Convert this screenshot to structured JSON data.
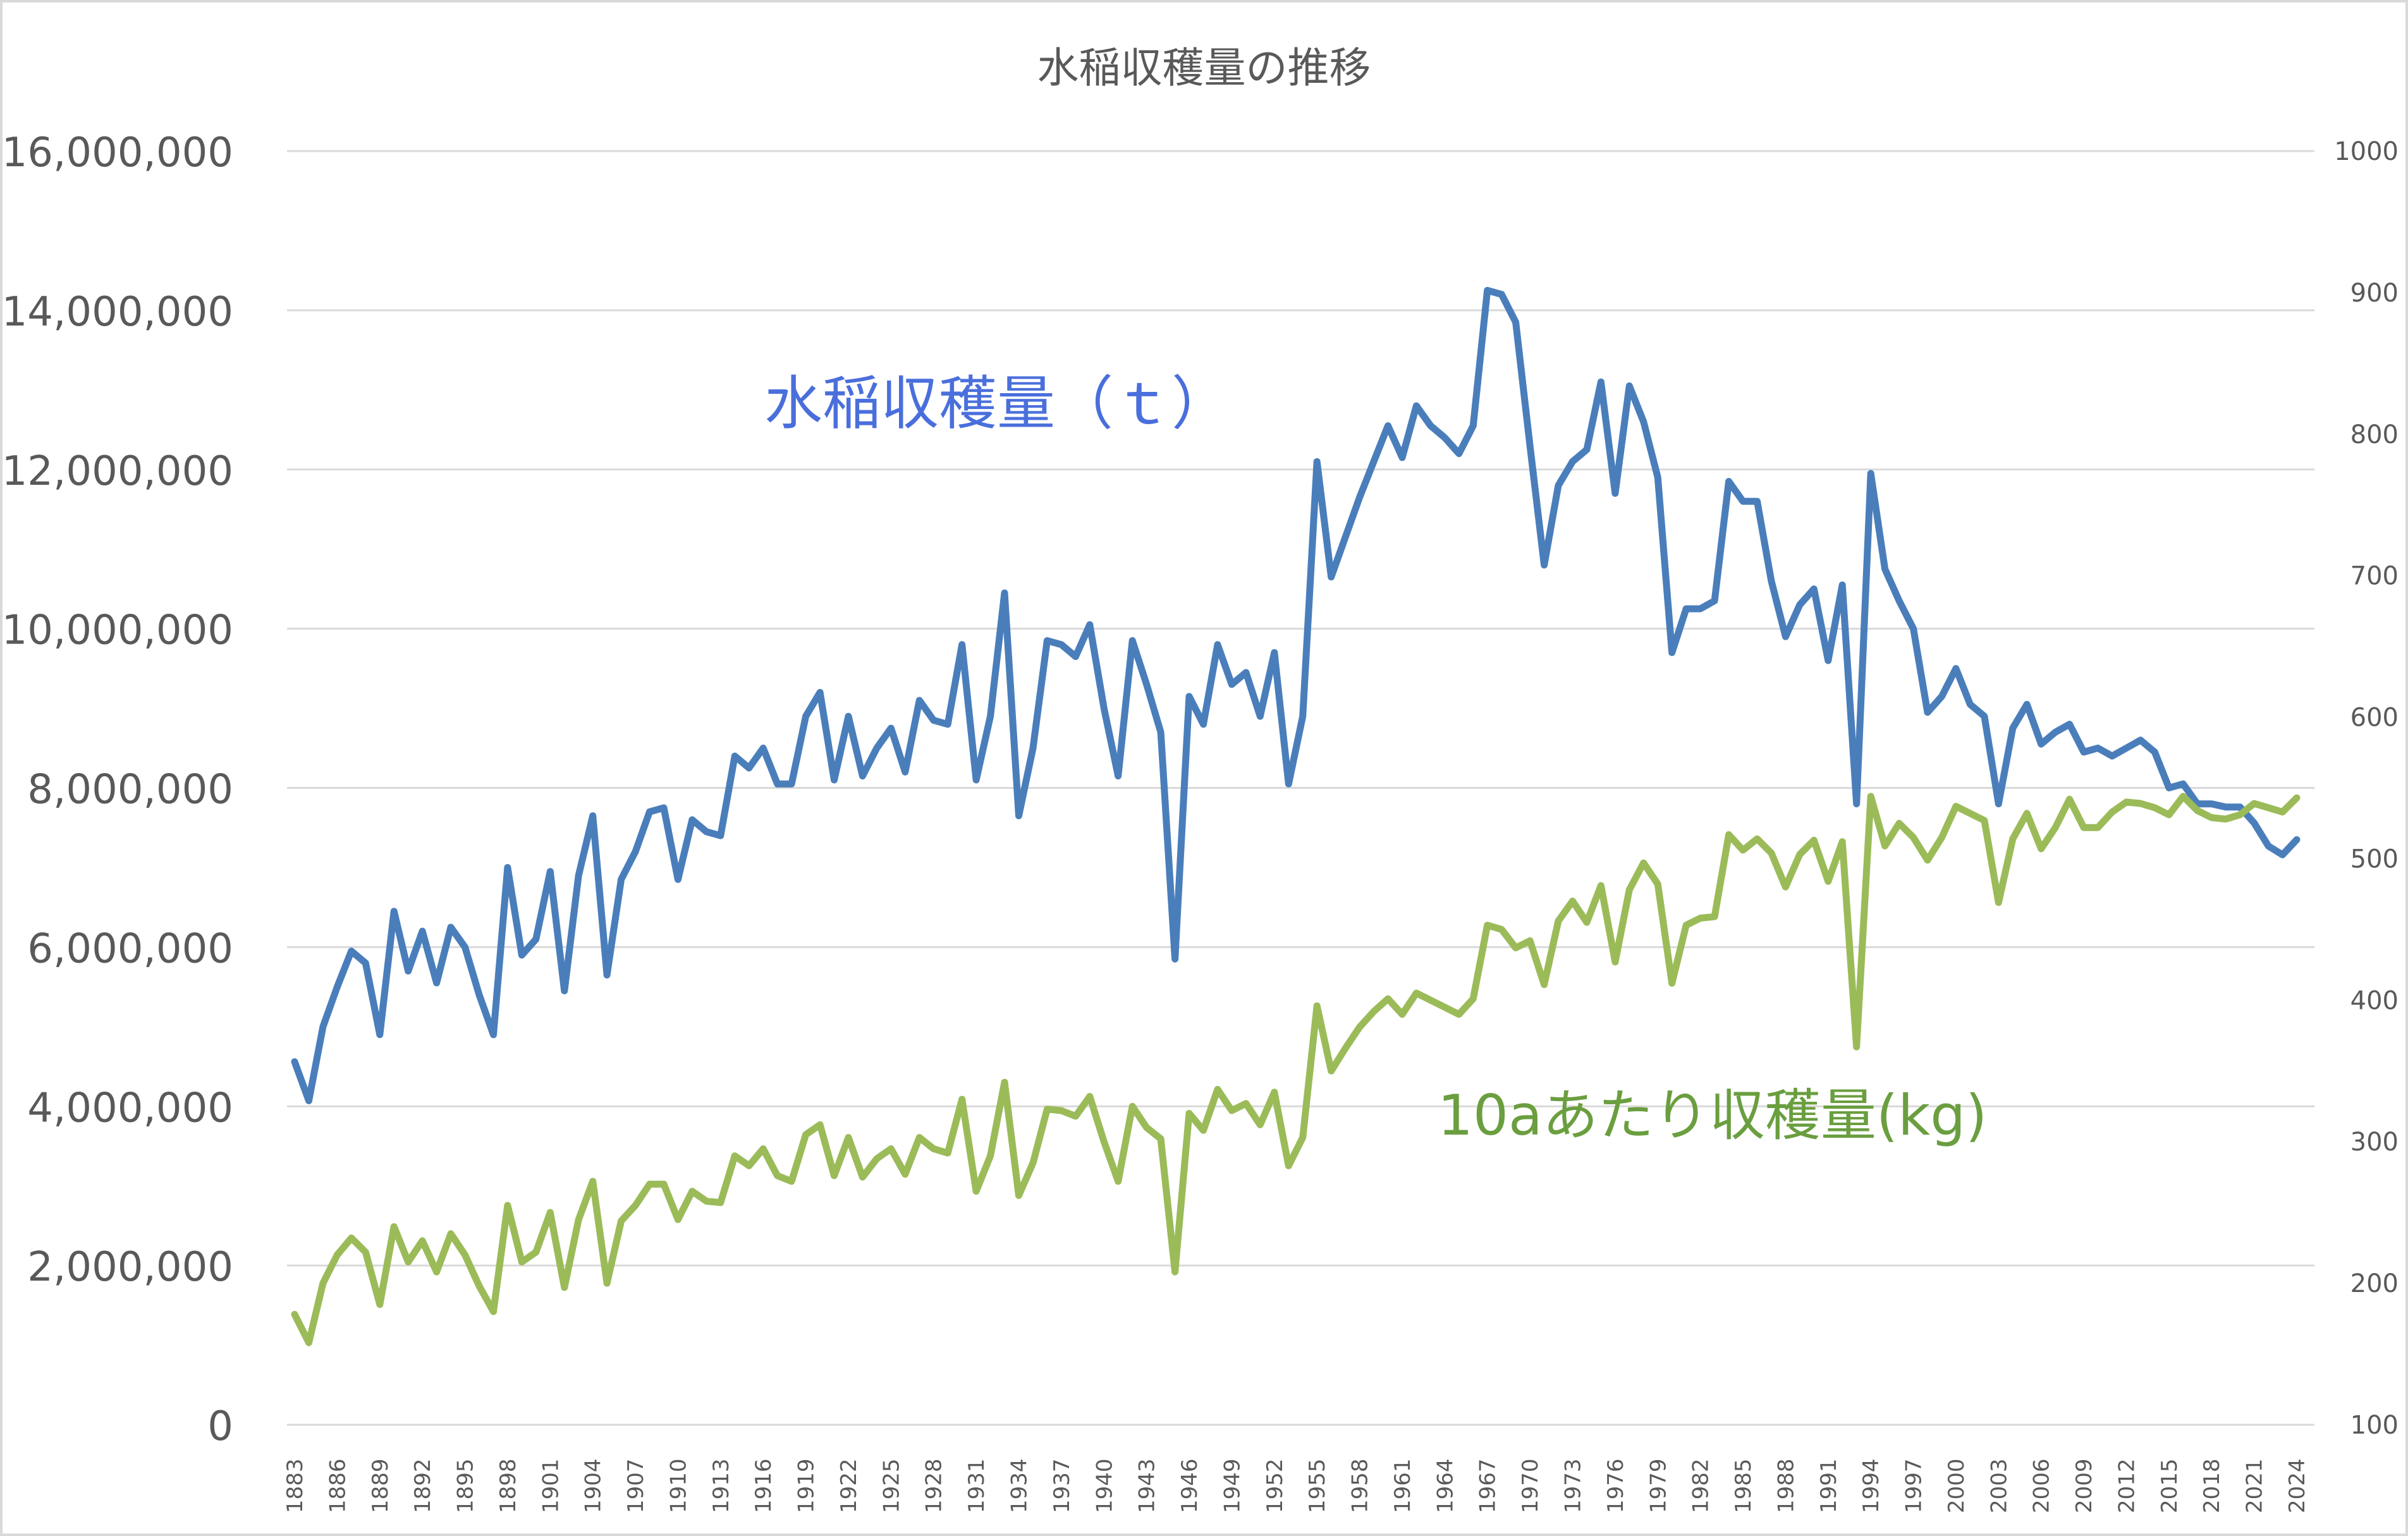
{
  "chart_data": {
    "type": "line",
    "title": "水稲収穫量の推移",
    "xlabel": "",
    "ylabel": "",
    "grid": true,
    "legend": "none (inline series labels)",
    "y_left": {
      "range": [
        0,
        16000000
      ],
      "ticks": [
        "0",
        "2,000,000",
        "4,000,000",
        "6,000,000",
        "8,000,000",
        "10,000,000",
        "12,000,000",
        "14,000,000",
        "16,000,000"
      ]
    },
    "y_right": {
      "range": [
        100,
        1000
      ],
      "ticks": [
        "100",
        "200",
        "300",
        "400",
        "500",
        "600",
        "700",
        "800",
        "900",
        "1000"
      ]
    },
    "x_tick_step": 3,
    "x": [
      1883,
      1884,
      1885,
      1886,
      1887,
      1888,
      1889,
      1890,
      1891,
      1892,
      1893,
      1894,
      1895,
      1896,
      1897,
      1898,
      1899,
      1900,
      1901,
      1902,
      1903,
      1904,
      1905,
      1906,
      1907,
      1908,
      1909,
      1910,
      1911,
      1912,
      1913,
      1914,
      1915,
      1916,
      1917,
      1918,
      1919,
      1920,
      1921,
      1922,
      1923,
      1924,
      1925,
      1926,
      1927,
      1928,
      1929,
      1930,
      1931,
      1932,
      1933,
      1934,
      1935,
      1936,
      1937,
      1938,
      1939,
      1940,
      1941,
      1942,
      1943,
      1944,
      1945,
      1946,
      1947,
      1948,
      1949,
      1950,
      1951,
      1952,
      1953,
      1954,
      1955,
      1956,
      1957,
      1958,
      1959,
      1960,
      1961,
      1962,
      1963,
      1964,
      1965,
      1966,
      1967,
      1968,
      1969,
      1970,
      1971,
      1972,
      1973,
      1974,
      1975,
      1976,
      1977,
      1978,
      1979,
      1980,
      1981,
      1982,
      1983,
      1984,
      1985,
      1986,
      1987,
      1988,
      1989,
      1990,
      1991,
      1992,
      1993,
      1994,
      1995,
      1996,
      1997,
      1998,
      1999,
      2000,
      2001,
      2002,
      2003,
      2004,
      2005,
      2006,
      2007,
      2008,
      2009,
      2010,
      2011,
      2012,
      2013,
      2014,
      2015,
      2016,
      2017,
      2018,
      2019,
      2020,
      2021,
      2022,
      2023,
      2024
    ],
    "series": [
      {
        "name": "水稲収穫量（ｔ）",
        "axis": "left",
        "color": "#4a7ebb",
        "values": [
          4560000,
          4070000,
          5000000,
          5500000,
          5950000,
          5800000,
          4900000,
          6450000,
          5700000,
          6200000,
          5550000,
          6250000,
          6000000,
          5400000,
          4900000,
          7000000,
          5900000,
          6100000,
          6950000,
          5450000,
          6900000,
          7650000,
          5650000,
          6850000,
          7200000,
          7700000,
          7750000,
          6850000,
          7600000,
          7450000,
          7400000,
          8400000,
          8250000,
          8500000,
          8050000,
          8050000,
          8900000,
          9200000,
          8100000,
          8900000,
          8150000,
          8500000,
          8750000,
          8200000,
          9100000,
          8850000,
          8800000,
          9800000,
          8100000,
          8900000,
          10450000,
          7650000,
          8500000,
          9850000,
          9800000,
          9650000,
          10050000,
          9000000,
          8150000,
          9850000,
          9300000,
          8700000,
          5850000,
          9150000,
          8800000,
          9800000,
          9300000,
          9450000,
          8900000,
          9700000,
          8050000,
          8900000,
          12100000,
          10650000,
          11150000,
          11650000,
          12100000,
          12550000,
          12150000,
          12800000,
          12550000,
          12400000,
          12200000,
          12550000,
          14250000,
          14200000,
          13850000,
          12300000,
          10800000,
          11800000,
          12100000,
          12250000,
          13100000,
          11700000,
          13050000,
          12600000,
          11900000,
          9700000,
          10250000,
          10250000,
          10350000,
          11850000,
          11600000,
          11600000,
          10600000,
          9900000,
          10300000,
          10500000,
          9600000,
          10550000,
          7800000,
          11950000,
          10750000,
          10350000,
          10000000,
          8950000,
          9150000,
          9500000,
          9050000,
          8900000,
          7800000,
          8750000,
          9050000,
          8550000,
          8700000,
          8800000,
          8450000,
          8500000,
          8400000,
          8500000,
          8600000,
          8450000,
          8000000,
          8050000,
          7800000,
          7800000,
          7760000,
          7760000,
          7560000,
          7270000,
          7160000,
          7350000
        ]
      },
      {
        "name": "10aあたり収穫量(kg)",
        "axis": "right",
        "color": "#9bbb59",
        "values": [
          178,
          158,
          200,
          220,
          232,
          222,
          185,
          240,
          215,
          230,
          208,
          235,
          220,
          198,
          180,
          255,
          215,
          222,
          250,
          197,
          245,
          272,
          200,
          244,
          255,
          270,
          270,
          245,
          265,
          258,
          257,
          290,
          283,
          295,
          276,
          272,
          305,
          312,
          276,
          303,
          275,
          288,
          295,
          277,
          303,
          295,
          292,
          330,
          265,
          290,
          342,
          262,
          285,
          323,
          322,
          318,
          332,
          300,
          272,
          325,
          310,
          302,
          208,
          320,
          308,
          337,
          322,
          327,
          312,
          335,
          283,
          303,
          396,
          350,
          366,
          381,
          392,
          401,
          390,
          405,
          400,
          395,
          390,
          401,
          453,
          450,
          437,
          442,
          411,
          456,
          470,
          455,
          481,
          427,
          478,
          497,
          482,
          412,
          453,
          458,
          459,
          517,
          506,
          514,
          504,
          480,
          503,
          513,
          484,
          512,
          367,
          544,
          509,
          525,
          515,
          499,
          515,
          537,
          532,
          527,
          469,
          514,
          532,
          507,
          522,
          542,
          522,
          522,
          533,
          540,
          539,
          536,
          531,
          544,
          534,
          529,
          528,
          531,
          539,
          536,
          533,
          543
        ]
      }
    ]
  }
}
